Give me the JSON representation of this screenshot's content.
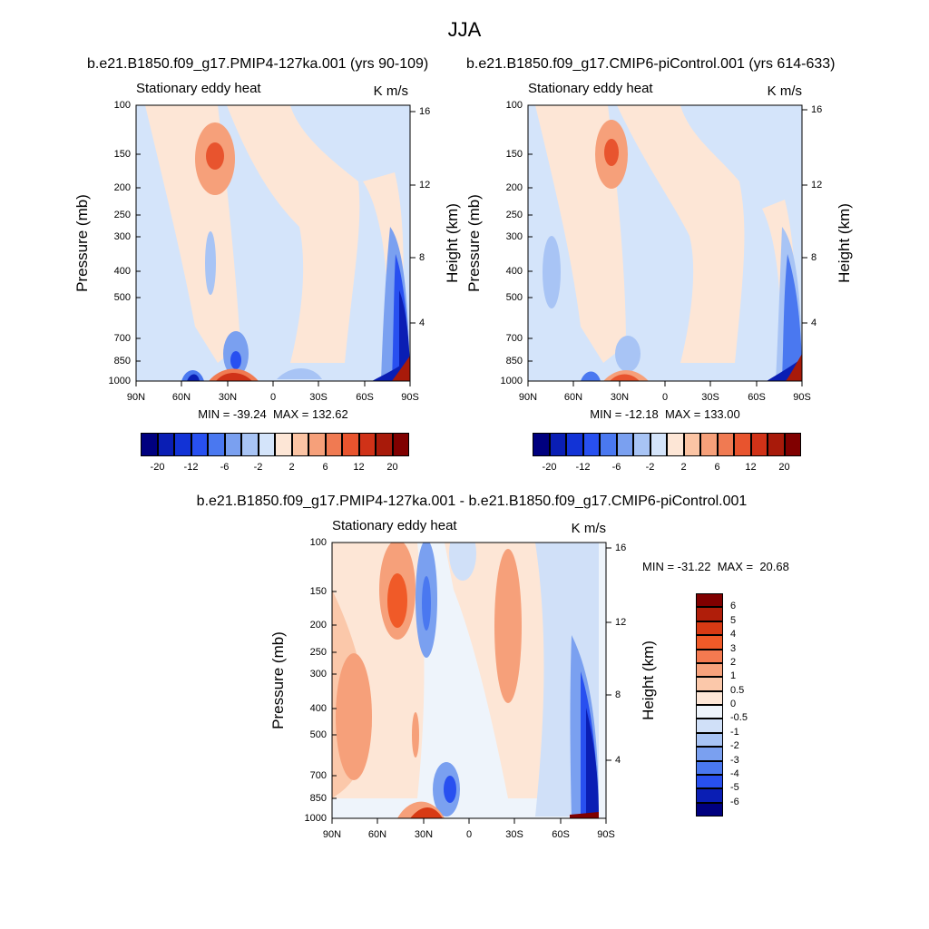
{
  "figure": {
    "title": "JJA",
    "variable_label": "Stationary eddy heat",
    "units": "K m/s"
  },
  "panels": [
    {
      "case_title": "b.e21.B1850.f09_g17.PMIP4-127ka.001 (yrs 90-109)",
      "stats": "MIN = -39.24  MAX = 132.62"
    },
    {
      "case_title": "b.e21.B1850.f09_g17.CMIP6-piControl.001 (yrs 614-633)",
      "stats": "MIN = -12.18  MAX = 133.00"
    },
    {
      "case_title": "b.e21.B1850.f09_g17.PMIP4-127ka.001 - b.e21.B1850.f09_g17.CMIP6-piControl.001",
      "stats": "MIN = -31.22  MAX =  20.68"
    }
  ],
  "axes": {
    "ylabel_left": "Pressure (mb)",
    "ylabel_right": "Height (km)",
    "pressure_ticks": [
      "100",
      "150",
      "200",
      "250",
      "300",
      "400",
      "500",
      "700",
      "850",
      "1000"
    ],
    "height_ticks": [
      "16",
      "12",
      "8",
      "4"
    ],
    "lat_ticks": [
      "90N",
      "60N",
      "30N",
      "0",
      "30S",
      "60S",
      "90S"
    ]
  },
  "colorbars": {
    "top_labels": [
      "-20",
      "-12",
      "-6",
      "-2",
      "2",
      "6",
      "12",
      "20"
    ],
    "top_colors": [
      "#00007f",
      "#0a1eb4",
      "#1233d6",
      "#2850f0",
      "#4a78f0",
      "#7aa0f0",
      "#a8c4f5",
      "#d4e4fa",
      "#fde6d6",
      "#fbc4a4",
      "#f6a07a",
      "#f07a52",
      "#e8542e",
      "#d03218",
      "#a81a0a",
      "#800000"
    ],
    "diff_labels": [
      "6",
      "5",
      "4",
      "3",
      "2",
      "1",
      "0.5",
      "0",
      "-0.5",
      "-1",
      "-2",
      "-3",
      "-4",
      "-5",
      "-6"
    ],
    "diff_colors": [
      "#800000",
      "#b01e0a",
      "#d83a14",
      "#f05a28",
      "#f47a50",
      "#f7a27c",
      "#fbc8aa",
      "#fde6d6",
      "#eef4fb",
      "#d0e0f8",
      "#a8c4f5",
      "#7aa0f0",
      "#4a78f0",
      "#2850f0",
      "#0a1eb4",
      "#00007f"
    ]
  },
  "chart_data": [
    {
      "type": "heatmap",
      "title": "b.e21.B1850.f09_g17.PMIP4-127ka.001 (yrs 90-109)",
      "ylabel": "Pressure (mb)",
      "y2label": "Height (km)",
      "units": "K m/s",
      "x_ticks": [
        "90N",
        "60N",
        "30N",
        "0",
        "30S",
        "60S",
        "90S"
      ],
      "y_ticks": [
        100,
        150,
        200,
        250,
        300,
        400,
        500,
        700,
        850,
        1000
      ],
      "y_scale": "log",
      "min": -39.24,
      "max": 132.62,
      "levels": [
        -20,
        -16,
        -12,
        -9,
        -6,
        -4,
        -2,
        0,
        2,
        4,
        6,
        9,
        12,
        16,
        20
      ]
    },
    {
      "type": "heatmap",
      "title": "b.e21.B1850.f09_g17.CMIP6-piControl.001 (yrs 614-633)",
      "ylabel": "Pressure (mb)",
      "y2label": "Height (km)",
      "units": "K m/s",
      "x_ticks": [
        "90N",
        "60N",
        "30N",
        "0",
        "30S",
        "60S",
        "90S"
      ],
      "y_ticks": [
        100,
        150,
        200,
        250,
        300,
        400,
        500,
        700,
        850,
        1000
      ],
      "y_scale": "log",
      "min": -12.18,
      "max": 133.0,
      "levels": [
        -20,
        -16,
        -12,
        -9,
        -6,
        -4,
        -2,
        0,
        2,
        4,
        6,
        9,
        12,
        16,
        20
      ]
    },
    {
      "type": "heatmap",
      "title": "b.e21.B1850.f09_g17.PMIP4-127ka.001 - b.e21.B1850.f09_g17.CMIP6-piControl.001",
      "ylabel": "Pressure (mb)",
      "y2label": "Height (km)",
      "units": "K m/s",
      "x_ticks": [
        "90N",
        "60N",
        "30N",
        "0",
        "30S",
        "60S",
        "90S"
      ],
      "y_ticks": [
        100,
        150,
        200,
        250,
        300,
        400,
        500,
        700,
        850,
        1000
      ],
      "y_scale": "log",
      "min": -31.22,
      "max": 20.68,
      "levels": [
        -6,
        -5,
        -4,
        -3,
        -2,
        -1,
        -0.5,
        0,
        0.5,
        1,
        2,
        3,
        4,
        5,
        6
      ]
    }
  ]
}
